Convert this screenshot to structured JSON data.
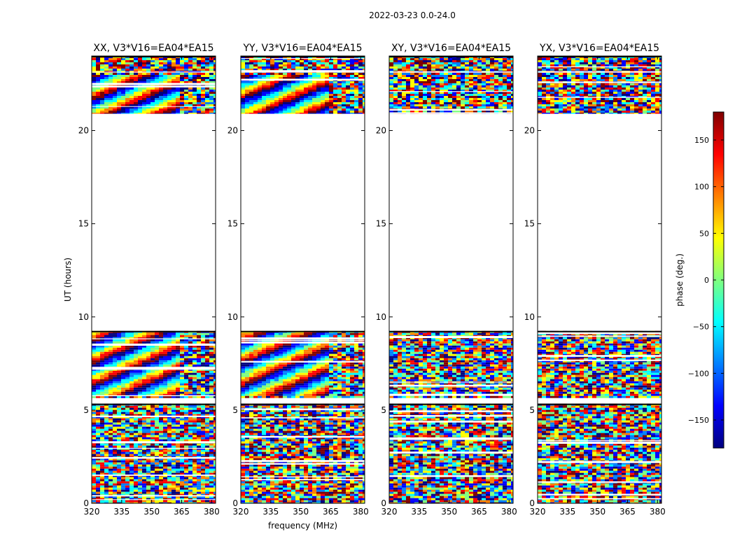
{
  "figure_title": "2022-03-23 0.0-24.0",
  "colors": {
    "axis": "#000000",
    "background": "#ffffff",
    "colormap": [
      "#00007f",
      "#0000ff",
      "#007fff",
      "#00ffff",
      "#7fff7f",
      "#ffff00",
      "#ff7f00",
      "#ff0000",
      "#7f0000"
    ]
  },
  "chart_data": [
    {
      "type": "heatmap",
      "title": "XX, V3*V16=EA04*EA15",
      "xlabel": "",
      "ylabel": "UT (hours)",
      "xlim": [
        320,
        382
      ],
      "ylim": [
        0,
        24
      ],
      "xticks": [
        320,
        335,
        350,
        365,
        380
      ],
      "yticks": [
        0,
        5,
        10,
        15,
        20
      ],
      "coherent_blocks": [
        [
          5.8,
          9.25
        ],
        [
          20.9,
          23.0
        ]
      ]
    },
    {
      "type": "heatmap",
      "title": "YY, V3*V16=EA04*EA15",
      "xlabel": "frequency (MHz)",
      "ylabel": "",
      "xlim": [
        320,
        382
      ],
      "ylim": [
        0,
        24
      ],
      "xticks": [
        320,
        335,
        350,
        365,
        380
      ],
      "yticks": [
        0,
        5,
        10,
        15,
        20
      ],
      "coherent_blocks": [
        [
          5.8,
          9.25
        ],
        [
          20.9,
          23.0
        ]
      ]
    },
    {
      "type": "heatmap",
      "title": "XY, V3*V16=EA04*EA15",
      "xlabel": "",
      "ylabel": "",
      "xlim": [
        320,
        382
      ],
      "ylim": [
        0,
        24
      ],
      "xticks": [
        320,
        335,
        350,
        365,
        380
      ],
      "yticks": [
        0,
        5,
        10,
        15,
        20
      ],
      "coherent_blocks": []
    },
    {
      "type": "heatmap",
      "title": "YX, V3*V16=EA04*EA15",
      "xlabel": "",
      "ylabel": "",
      "xlim": [
        320,
        382
      ],
      "ylim": [
        0,
        24
      ],
      "xticks": [
        320,
        335,
        350,
        365,
        380
      ],
      "yticks": [
        0,
        5,
        10,
        15,
        20
      ],
      "coherent_blocks": []
    }
  ],
  "data_segments": [
    [
      0,
      5.35
    ],
    [
      5.65,
      9.25
    ],
    [
      20.9,
      24.0
    ]
  ],
  "colorbar": {
    "label": "phase (deg.)",
    "range": [
      -180,
      180
    ],
    "ticks": [
      150,
      100,
      50,
      0,
      -50,
      -100,
      -150
    ],
    "tick_labels": [
      "150",
      "100",
      "50",
      "0",
      "−50",
      "−100",
      "−150"
    ]
  }
}
